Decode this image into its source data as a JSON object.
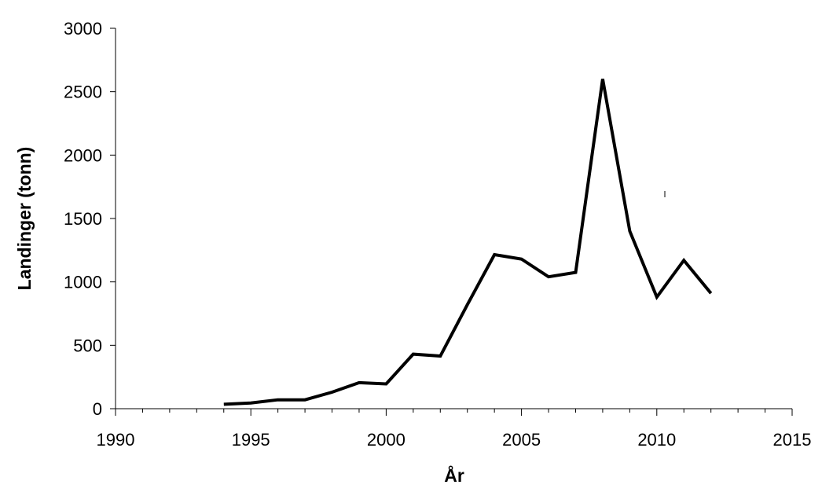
{
  "chart_data": {
    "type": "line",
    "xlabel": "År",
    "ylabel": "Landinger (tonn)",
    "xlim": [
      1990,
      2015
    ],
    "ylim": [
      0,
      3000
    ],
    "x_ticks": [
      1990,
      1995,
      2000,
      2005,
      2010,
      2015
    ],
    "y_ticks": [
      0,
      500,
      1000,
      1500,
      2000,
      2500,
      3000
    ],
    "x_minor_step": 1,
    "grid": false,
    "line_color": "#000000",
    "series": [
      {
        "x": [
          1994,
          1995,
          1996,
          1997,
          1998,
          1999,
          2000,
          2001,
          2002,
          2003,
          2004,
          2005,
          2006,
          2007,
          2008,
          2009,
          2010,
          2011,
          2012
        ],
        "values": [
          35,
          45,
          70,
          70,
          130,
          205,
          195,
          430,
          415,
          820,
          1215,
          1180,
          1040,
          1075,
          2600,
          1400,
          880,
          1170,
          910
        ]
      }
    ]
  }
}
